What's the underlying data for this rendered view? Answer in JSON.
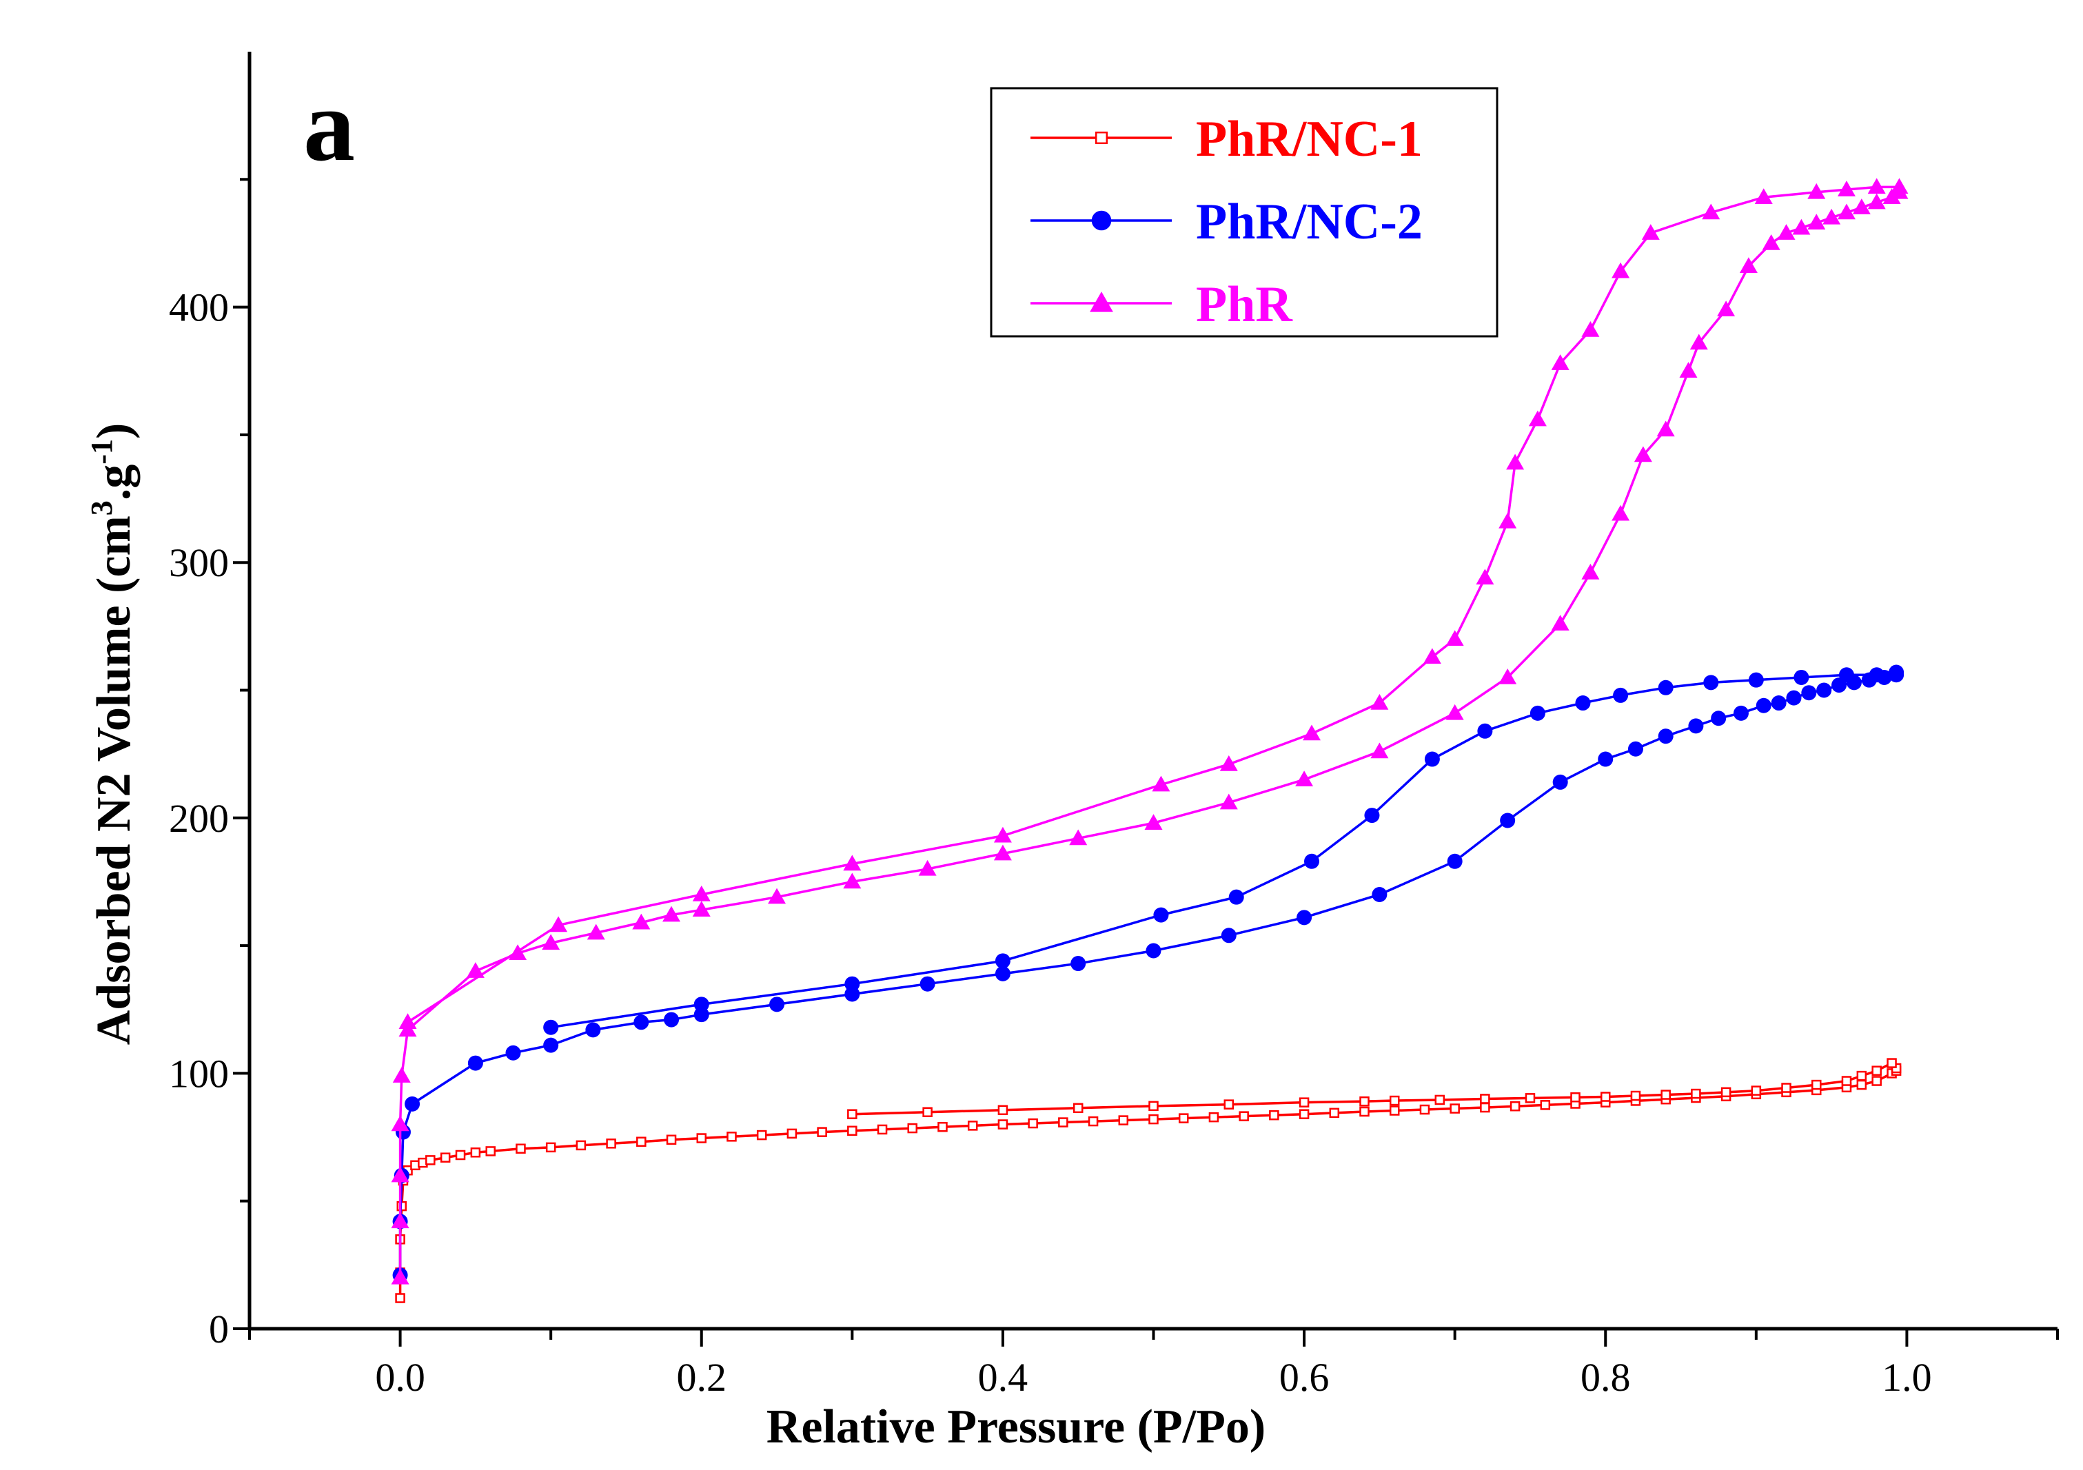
{
  "chart_data": {
    "type": "line",
    "panel_label": "a",
    "xlabel": "Relative Pressure (P/Po)",
    "ylabel_main": "Adsorbed N2 Volume (cm",
    "ylabel_sup1": "3",
    "ylabel_mid": ".g",
    "ylabel_sup2": "-1",
    "ylabel_end": ")",
    "xlim": [
      -0.1,
      1.1
    ],
    "ylim": [
      0,
      500
    ],
    "xticks": [
      "0.0",
      "0.2",
      "0.4",
      "0.6",
      "0.8",
      "1.0"
    ],
    "yticks": [
      "0",
      "100",
      "200",
      "300",
      "400"
    ],
    "legend_position": "top-right",
    "series": [
      {
        "name": "PhR/NC-1",
        "color": "#ff0000",
        "marker": "square",
        "adsorption": [
          [
            0.0,
            12
          ],
          [
            0.0,
            22
          ],
          [
            0.0,
            35
          ],
          [
            0.001,
            48
          ],
          [
            0.002,
            58
          ],
          [
            0.005,
            62
          ],
          [
            0.01,
            64
          ],
          [
            0.015,
            65
          ],
          [
            0.02,
            66
          ],
          [
            0.03,
            67
          ],
          [
            0.04,
            68
          ],
          [
            0.05,
            69
          ],
          [
            0.06,
            69.5
          ],
          [
            0.08,
            70.5
          ],
          [
            0.1,
            71
          ],
          [
            0.12,
            71.8
          ],
          [
            0.14,
            72.5
          ],
          [
            0.16,
            73.2
          ],
          [
            0.18,
            74
          ],
          [
            0.2,
            74.6
          ],
          [
            0.22,
            75.2
          ],
          [
            0.24,
            75.8
          ],
          [
            0.26,
            76.4
          ],
          [
            0.28,
            77
          ],
          [
            0.3,
            77.5
          ],
          [
            0.32,
            78
          ],
          [
            0.34,
            78.5
          ],
          [
            0.36,
            79
          ],
          [
            0.38,
            79.5
          ],
          [
            0.4,
            80
          ],
          [
            0.42,
            80.4
          ],
          [
            0.44,
            80.8
          ],
          [
            0.46,
            81.2
          ],
          [
            0.48,
            81.6
          ],
          [
            0.5,
            82
          ],
          [
            0.52,
            82.4
          ],
          [
            0.54,
            82.8
          ],
          [
            0.56,
            83.2
          ],
          [
            0.58,
            83.6
          ],
          [
            0.6,
            84
          ],
          [
            0.62,
            84.5
          ],
          [
            0.64,
            85
          ],
          [
            0.66,
            85.4
          ],
          [
            0.68,
            85.8
          ],
          [
            0.7,
            86.2
          ],
          [
            0.72,
            86.6
          ],
          [
            0.74,
            87.1
          ],
          [
            0.76,
            87.6
          ],
          [
            0.78,
            88.1
          ],
          [
            0.8,
            88.6
          ],
          [
            0.82,
            89.2
          ],
          [
            0.84,
            89.8
          ],
          [
            0.86,
            90.4
          ],
          [
            0.88,
            91
          ],
          [
            0.9,
            91.8
          ],
          [
            0.92,
            92.6
          ],
          [
            0.94,
            93.4
          ],
          [
            0.96,
            94.5
          ],
          [
            0.97,
            95.5
          ],
          [
            0.98,
            97
          ],
          [
            0.99,
            100
          ],
          [
            0.993,
            101
          ]
        ],
        "desorption": [
          [
            0.993,
            102
          ],
          [
            0.99,
            104
          ],
          [
            0.98,
            101
          ],
          [
            0.97,
            99
          ],
          [
            0.96,
            97
          ],
          [
            0.94,
            95.5
          ],
          [
            0.92,
            94.3
          ],
          [
            0.9,
            93.2
          ],
          [
            0.88,
            92.6
          ],
          [
            0.86,
            92
          ],
          [
            0.84,
            91.6
          ],
          [
            0.82,
            91.2
          ],
          [
            0.8,
            90.8
          ],
          [
            0.78,
            90.6
          ],
          [
            0.75,
            90.3
          ],
          [
            0.72,
            90
          ],
          [
            0.69,
            89.6
          ],
          [
            0.66,
            89.3
          ],
          [
            0.64,
            89
          ],
          [
            0.6,
            88.6
          ],
          [
            0.55,
            87.8
          ],
          [
            0.5,
            87.2
          ],
          [
            0.45,
            86.4
          ],
          [
            0.4,
            85.6
          ],
          [
            0.35,
            84.8
          ],
          [
            0.3,
            84
          ]
        ]
      },
      {
        "name": "PhR/NC-2",
        "color": "#0000ff",
        "marker": "circle",
        "adsorption": [
          [
            0.0,
            21
          ],
          [
            0.0,
            42
          ],
          [
            0.001,
            60
          ],
          [
            0.002,
            77
          ],
          [
            0.008,
            88
          ],
          [
            0.05,
            104
          ],
          [
            0.075,
            108
          ],
          [
            0.1,
            111
          ],
          [
            0.128,
            117
          ],
          [
            0.16,
            120
          ],
          [
            0.18,
            121
          ],
          [
            0.2,
            123
          ],
          [
            0.25,
            127
          ],
          [
            0.3,
            131
          ],
          [
            0.35,
            135
          ],
          [
            0.4,
            139
          ],
          [
            0.45,
            143
          ],
          [
            0.5,
            148
          ],
          [
            0.55,
            154
          ],
          [
            0.6,
            161
          ],
          [
            0.65,
            170
          ],
          [
            0.7,
            183
          ],
          [
            0.735,
            199
          ],
          [
            0.77,
            214
          ],
          [
            0.8,
            223
          ],
          [
            0.82,
            227
          ],
          [
            0.84,
            232
          ],
          [
            0.86,
            236
          ],
          [
            0.875,
            239
          ],
          [
            0.89,
            241
          ],
          [
            0.905,
            244
          ],
          [
            0.915,
            245
          ],
          [
            0.925,
            247
          ],
          [
            0.935,
            249
          ],
          [
            0.945,
            250
          ],
          [
            0.955,
            252
          ],
          [
            0.965,
            253
          ],
          [
            0.975,
            254
          ],
          [
            0.985,
            255
          ],
          [
            0.993,
            256
          ]
        ],
        "desorption": [
          [
            0.993,
            257
          ],
          [
            0.98,
            256
          ],
          [
            0.96,
            256
          ],
          [
            0.93,
            255
          ],
          [
            0.9,
            254
          ],
          [
            0.87,
            253
          ],
          [
            0.84,
            251
          ],
          [
            0.81,
            248
          ],
          [
            0.785,
            245
          ],
          [
            0.755,
            241
          ],
          [
            0.72,
            234
          ],
          [
            0.685,
            223
          ],
          [
            0.645,
            201
          ],
          [
            0.605,
            183
          ],
          [
            0.555,
            169
          ],
          [
            0.505,
            162
          ],
          [
            0.4,
            144
          ],
          [
            0.3,
            135
          ],
          [
            0.2,
            127
          ],
          [
            0.1,
            118
          ]
        ]
      },
      {
        "name": "PhR",
        "color": "#ff00ff",
        "marker": "triangle",
        "adsorption": [
          [
            0.0,
            20
          ],
          [
            0.0,
            42
          ],
          [
            0.0,
            60
          ],
          [
            0.0,
            80
          ],
          [
            0.001,
            99
          ],
          [
            0.005,
            117
          ],
          [
            0.05,
            140
          ],
          [
            0.078,
            147
          ],
          [
            0.1,
            151
          ],
          [
            0.13,
            155
          ],
          [
            0.16,
            159
          ],
          [
            0.18,
            162
          ],
          [
            0.2,
            164
          ],
          [
            0.25,
            169
          ],
          [
            0.3,
            175
          ],
          [
            0.35,
            180
          ],
          [
            0.4,
            186
          ],
          [
            0.45,
            192
          ],
          [
            0.5,
            198
          ],
          [
            0.55,
            206
          ],
          [
            0.6,
            215
          ],
          [
            0.65,
            226
          ],
          [
            0.7,
            241
          ],
          [
            0.735,
            255
          ],
          [
            0.77,
            276
          ],
          [
            0.79,
            296
          ],
          [
            0.81,
            319
          ],
          [
            0.825,
            342
          ],
          [
            0.84,
            352
          ],
          [
            0.855,
            375
          ],
          [
            0.862,
            386
          ],
          [
            0.88,
            399
          ],
          [
            0.895,
            416
          ],
          [
            0.91,
            425
          ],
          [
            0.92,
            429
          ],
          [
            0.93,
            431
          ],
          [
            0.94,
            433
          ],
          [
            0.95,
            435
          ],
          [
            0.96,
            437
          ],
          [
            0.97,
            439
          ],
          [
            0.98,
            441
          ],
          [
            0.99,
            443
          ],
          [
            0.995,
            445
          ]
        ],
        "desorption": [
          [
            0.995,
            447
          ],
          [
            0.98,
            447
          ],
          [
            0.96,
            446
          ],
          [
            0.94,
            445
          ],
          [
            0.905,
            443
          ],
          [
            0.87,
            437
          ],
          [
            0.83,
            429
          ],
          [
            0.81,
            414
          ],
          [
            0.79,
            391
          ],
          [
            0.77,
            378
          ],
          [
            0.755,
            356
          ],
          [
            0.74,
            339
          ],
          [
            0.735,
            316
          ],
          [
            0.72,
            294
          ],
          [
            0.7,
            270
          ],
          [
            0.685,
            263
          ],
          [
            0.65,
            245
          ],
          [
            0.605,
            233
          ],
          [
            0.55,
            221
          ],
          [
            0.505,
            213
          ],
          [
            0.4,
            193
          ],
          [
            0.3,
            182
          ],
          [
            0.2,
            170
          ],
          [
            0.105,
            158
          ],
          [
            0.005,
            120
          ]
        ]
      }
    ]
  }
}
